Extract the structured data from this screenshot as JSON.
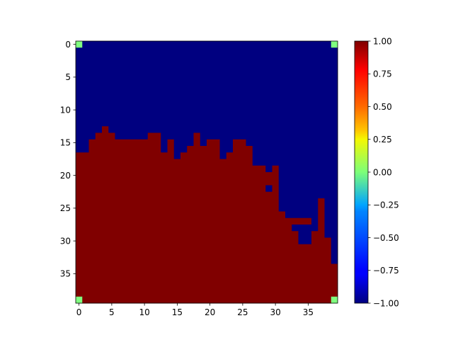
{
  "chart_data": {
    "type": "heatmap",
    "title": "",
    "xlabel": "",
    "ylabel": "",
    "grid": false,
    "colormap": "jet",
    "vmin": -1.0,
    "vmax": 1.0,
    "rows": 40,
    "cols": 40,
    "xlim": [
      -0.5,
      39.5
    ],
    "ylim": [
      39.5,
      -0.5
    ],
    "x_ticks": [
      0,
      5,
      10,
      15,
      20,
      25,
      30,
      35
    ],
    "y_ticks": [
      0,
      5,
      10,
      15,
      20,
      25,
      30,
      35
    ],
    "x_tick_labels": [
      "0",
      "5",
      "10",
      "15",
      "20",
      "25",
      "30",
      "35"
    ],
    "y_tick_labels": [
      "0",
      "5",
      "10",
      "15",
      "20",
      "25",
      "30",
      "35"
    ],
    "boundary_first_filled_row": [
      17,
      17,
      15,
      14,
      13,
      14,
      15,
      15,
      15,
      15,
      15,
      14,
      14,
      17,
      15,
      18,
      17,
      16,
      14,
      16,
      15,
      15,
      18,
      17,
      15,
      15,
      16,
      19,
      19,
      20,
      19,
      26,
      27,
      29,
      31,
      31,
      29,
      24,
      30,
      29
    ],
    "notches": [
      {
        "col": 29,
        "from_row": 22,
        "to_row": 22,
        "value": -1
      },
      {
        "col": 33,
        "from_row": 27,
        "to_row": 27,
        "value": 1
      },
      {
        "col": 34,
        "from_row": 27,
        "to_row": 27,
        "value": 1
      },
      {
        "col": 35,
        "from_row": 27,
        "to_row": 27,
        "value": 1
      },
      {
        "col": 39,
        "from_row": 29,
        "to_row": 33,
        "value": -1
      }
    ],
    "background_value": -1,
    "filled_value": 1,
    "corner_cells": [
      {
        "row": 0,
        "col": 0,
        "value": 0
      },
      {
        "row": 0,
        "col": 39,
        "value": 0
      },
      {
        "row": 39,
        "col": 0,
        "value": 0
      },
      {
        "row": 39,
        "col": 39,
        "value": 0
      }
    ],
    "colorbar": {
      "ticks": [
        1.0,
        0.75,
        0.5,
        0.25,
        0.0,
        -0.25,
        -0.5,
        -0.75,
        -1.0
      ],
      "tick_labels": [
        "1.00",
        "0.75",
        "0.50",
        "0.25",
        "0.00",
        "−0.25",
        "−0.50",
        "−0.75",
        "−1.00"
      ],
      "position": "right"
    },
    "colors": {
      "low": "#00007f",
      "high": "#7f0000",
      "mid": "#7cff79"
    }
  }
}
